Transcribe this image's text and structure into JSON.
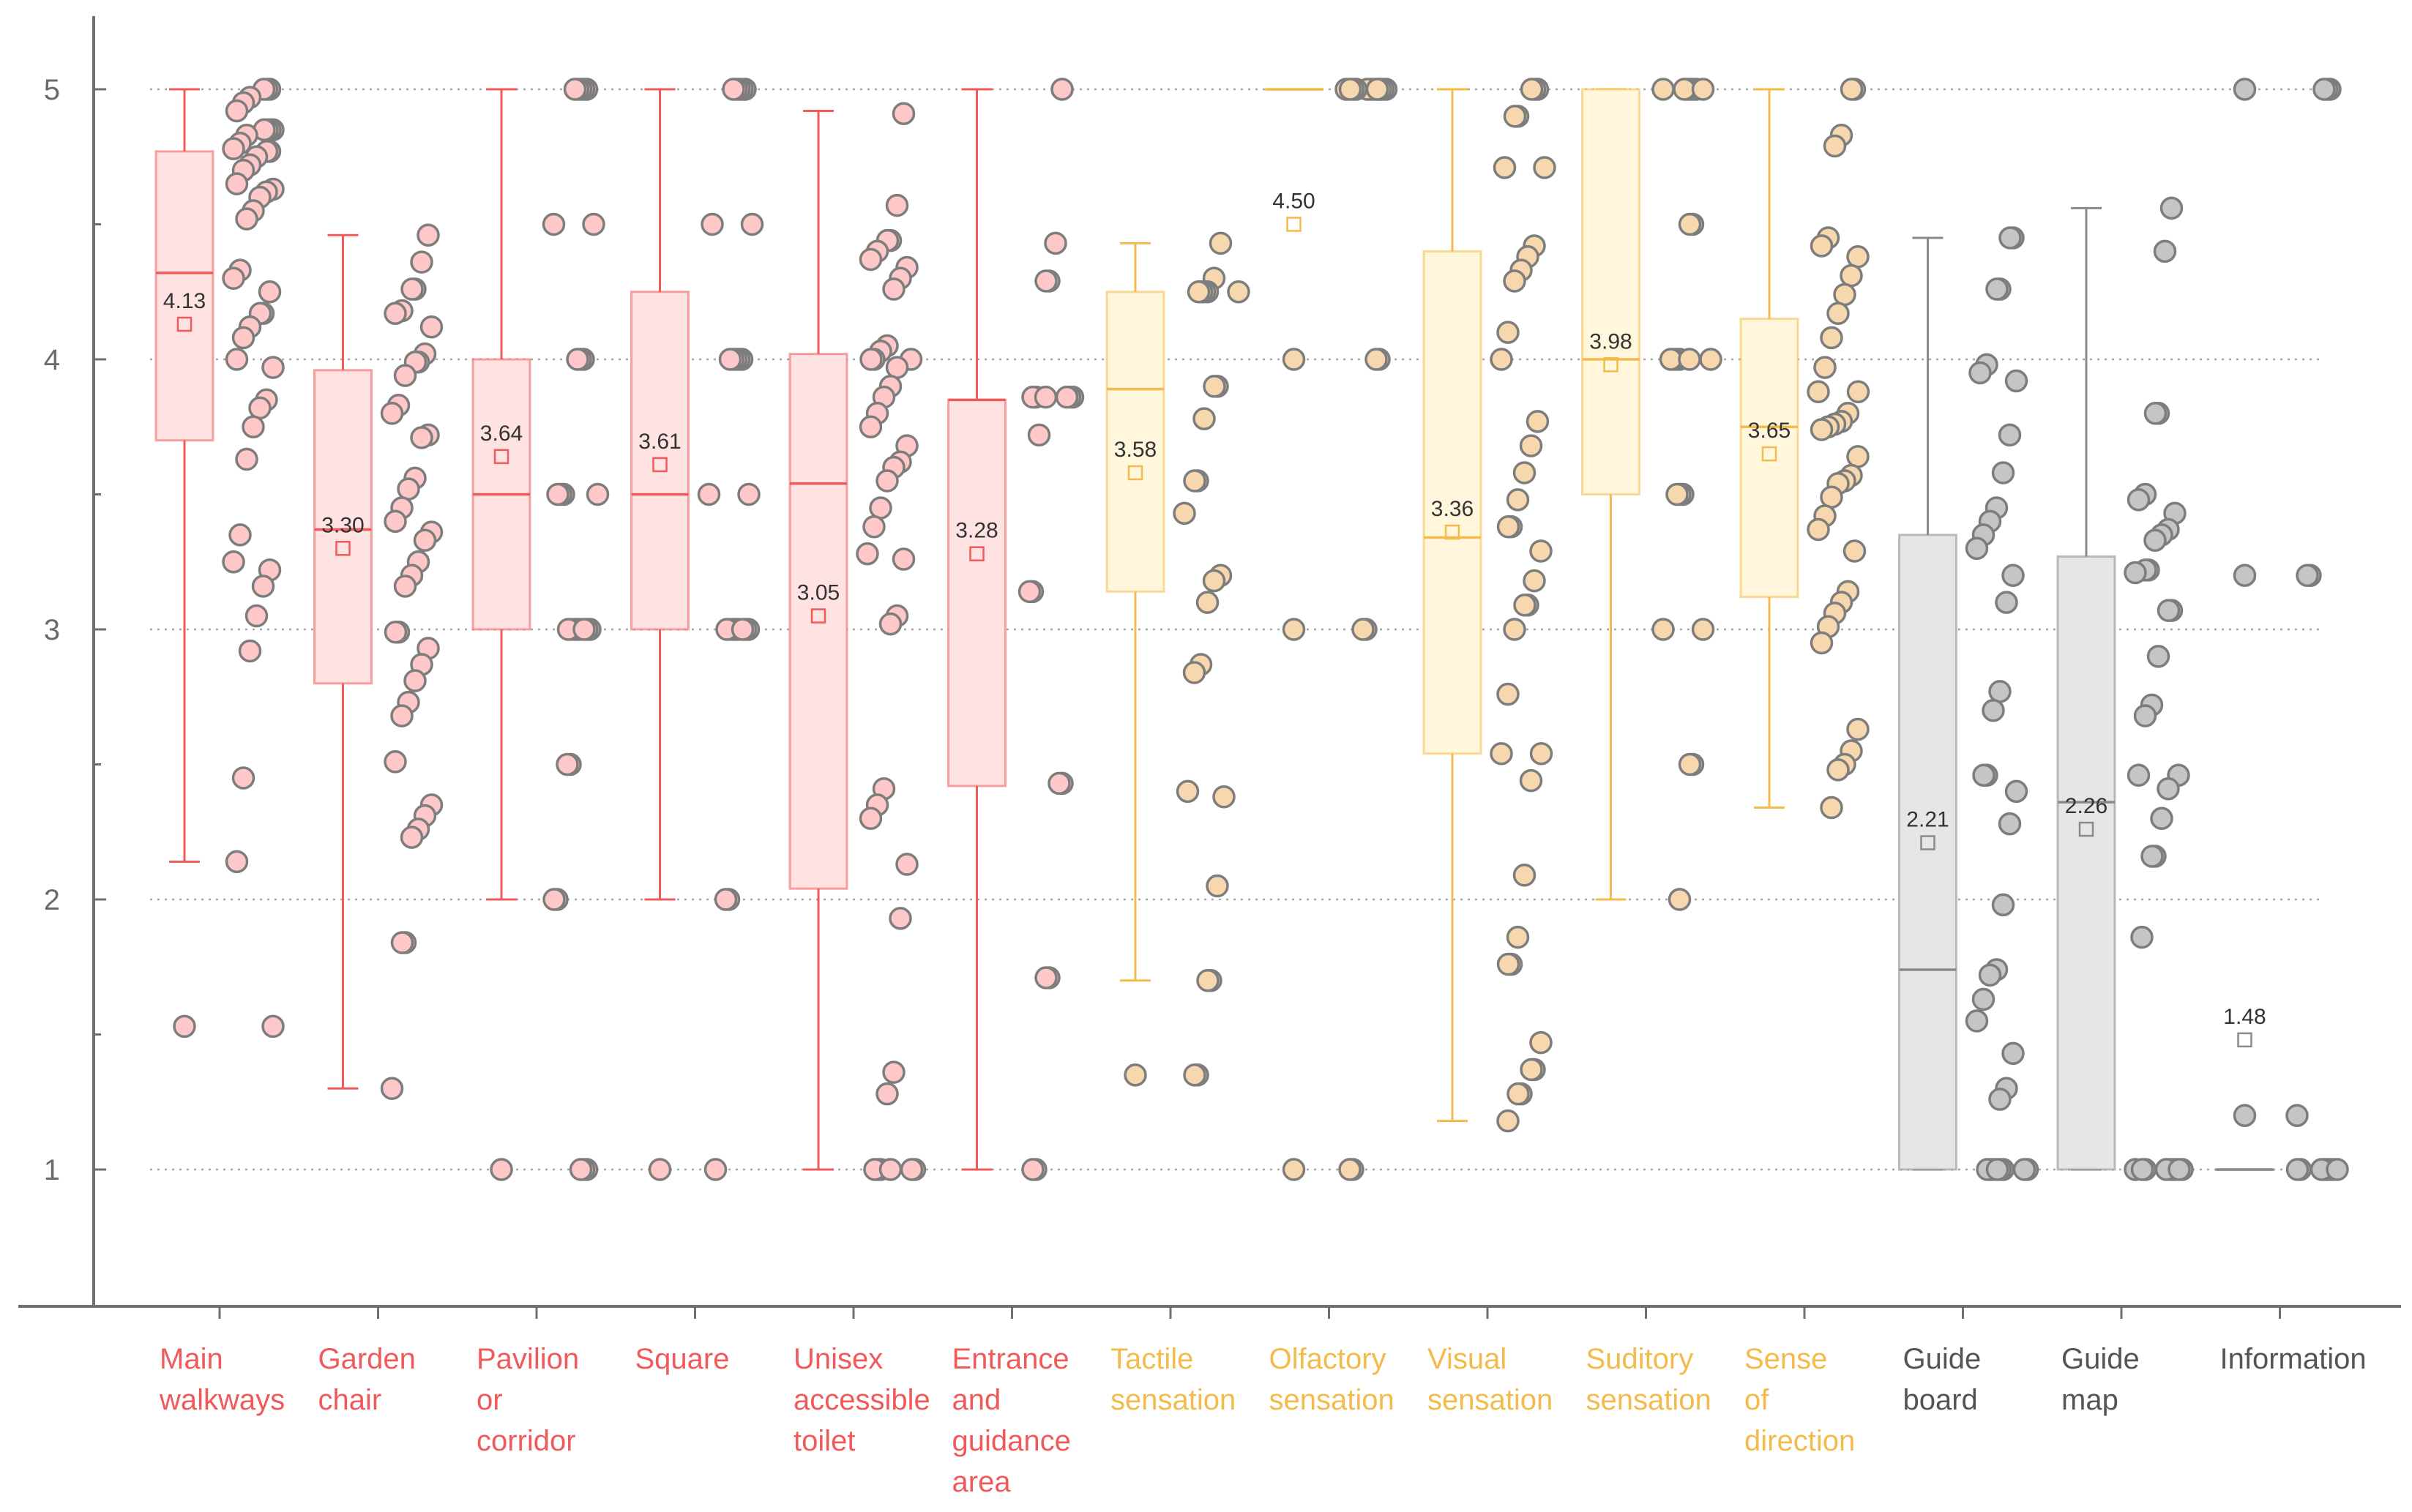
{
  "colors": {
    "red_line": "#f05a5a",
    "red_fill": "#ffe2e2",
    "red_dot": "#ffc8c8",
    "yellow_line": "#f2bb4b",
    "yellow_fill": "#fff6dc",
    "yellow_dot": "#f7d7ad",
    "gray_line": "#8a8a8a",
    "gray_fill": "#e6e6e6",
    "gray_dot": "#c5c5c5",
    "dot_stroke": "#7d7d7d",
    "axis": "#6f6f6f",
    "grid": "#a8a8a8"
  },
  "chart_data": {
    "type": "box",
    "title": "",
    "xlabel": "",
    "ylabel": "",
    "ylim": [
      0.5,
      5.3
    ],
    "yticks": [
      1,
      2,
      3,
      4,
      5
    ],
    "ytick_labels": [
      "1",
      "2",
      "3",
      "4",
      "5"
    ],
    "grid": "horizontal dotted at 1, 2, 3, 4, 5",
    "categories": [
      {
        "name": "Main walkways",
        "label_lines": [
          "Main",
          "walkways"
        ],
        "group": "red",
        "min": 2.14,
        "q1": 3.7,
        "median": 4.32,
        "q3": 4.77,
        "max": 5.0,
        "mean": 4.13,
        "mean_label": "4.13",
        "outliers": [
          1.53
        ],
        "points": [
          5,
          5,
          5,
          4.97,
          4.95,
          4.92,
          4.85,
          4.85,
          4.85,
          4.85,
          4.83,
          4.8,
          4.78,
          4.77,
          4.77,
          4.75,
          4.72,
          4.7,
          4.65,
          4.63,
          4.62,
          4.6,
          4.55,
          4.52,
          4.33,
          4.3,
          4.25,
          4.17,
          4.17,
          4.12,
          4.08,
          4,
          3.97,
          3.85,
          3.82,
          3.75,
          3.63,
          3.35,
          3.25,
          3.22,
          3.16,
          3.05,
          2.92,
          2.45,
          2.14,
          1.53
        ]
      },
      {
        "name": "Garden chair",
        "label_lines": [
          "Garden",
          "chair"
        ],
        "group": "red",
        "min": 1.3,
        "q1": 2.8,
        "median": 3.37,
        "q3": 3.96,
        "max": 4.46,
        "mean": 3.3,
        "mean_label": "3.30",
        "outliers": [],
        "points": [
          4.46,
          4.36,
          4.26,
          4.26,
          4.18,
          4.17,
          4.12,
          4.02,
          3.99,
          3.99,
          3.94,
          3.83,
          3.8,
          3.72,
          3.71,
          3.56,
          3.52,
          3.45,
          3.4,
          3.36,
          3.33,
          3.25,
          3.2,
          3.16,
          2.99,
          2.99,
          2.93,
          2.87,
          2.81,
          2.73,
          2.68,
          2.51,
          2.35,
          2.31,
          2.26,
          2.23,
          1.84,
          1.84,
          1.3
        ]
      },
      {
        "name": "Pavilion or corridor",
        "label_lines": [
          "Pavilion",
          "or",
          "corridor"
        ],
        "group": "red",
        "min": 2.0,
        "q1": 3.0,
        "median": 3.5,
        "q3": 4.0,
        "max": 5.0,
        "mean": 3.64,
        "mean_label": "3.64",
        "outliers": [
          1.0
        ],
        "points": [
          5,
          5,
          5,
          5,
          5,
          4.5,
          4.5,
          4,
          4,
          4,
          3.5,
          3.5,
          3.5,
          3.5,
          3,
          3,
          3,
          3,
          3,
          3,
          3,
          3,
          2.5,
          2.5,
          2,
          2,
          1,
          1,
          1
        ]
      },
      {
        "name": "Square",
        "label_lines": [
          "Square"
        ],
        "group": "red",
        "min": 2.0,
        "q1": 3.0,
        "median": 3.5,
        "q3": 4.25,
        "max": 5.0,
        "mean": 3.61,
        "mean_label": "3.61",
        "outliers": [
          1.0
        ],
        "points": [
          5,
          5,
          5,
          5,
          5,
          4.5,
          4.5,
          4,
          4,
          4,
          4,
          4,
          3.5,
          3.5,
          3,
          3,
          3,
          3,
          3,
          3,
          3,
          3,
          2,
          2,
          1
        ]
      },
      {
        "name": "Unisex accessible toilet",
        "label_lines": [
          "Unisex",
          "accessible",
          "toilet"
        ],
        "group": "red",
        "min": 1.0,
        "q1": 2.04,
        "median": 3.54,
        "q3": 4.02,
        "max": 4.92,
        "mean": 3.05,
        "mean_label": "3.05",
        "outliers": [],
        "points": [
          4.91,
          4.57,
          4.44,
          4.44,
          4.4,
          4.37,
          4.34,
          4.3,
          4.26,
          4.05,
          4.03,
          4.0,
          4.0,
          4.0,
          3.97,
          3.9,
          3.86,
          3.8,
          3.75,
          3.68,
          3.62,
          3.6,
          3.55,
          3.45,
          3.38,
          3.28,
          3.26,
          3.05,
          3.02,
          2.41,
          2.35,
          2.3,
          2.13,
          1.93,
          1.36,
          1.28,
          1,
          1,
          1,
          1,
          1,
          1
        ]
      },
      {
        "name": "Entrance and guidance area",
        "label_lines": [
          "Entrance",
          "and",
          "guidance",
          "area"
        ],
        "group": "red",
        "min": 1.0,
        "q1": 2.42,
        "median": 3.85,
        "q3": 3.85,
        "max": 5.0,
        "mean": 3.28,
        "mean_label": "3.28",
        "outliers": [],
        "points": [
          5,
          4.43,
          4.29,
          4.29,
          3.86,
          3.86,
          3.86,
          3.86,
          3.86,
          3.86,
          3.72,
          3.14,
          3.14,
          2.43,
          2.43,
          1.71,
          1.71,
          1,
          1
        ]
      },
      {
        "name": "Tactile sensation",
        "label_lines": [
          "Tactile",
          "sensation"
        ],
        "group": "yellow",
        "min": 1.7,
        "q1": 3.14,
        "median": 3.89,
        "q3": 4.25,
        "max": 4.43,
        "mean": 3.58,
        "mean_label": "3.58",
        "outliers": [
          1.35
        ],
        "points": [
          4.43,
          4.3,
          4.25,
          4.25,
          4.25,
          4.25,
          4.25,
          3.9,
          3.9,
          3.78,
          3.55,
          3.55,
          3.43,
          3.2,
          3.18,
          3.1,
          2.87,
          2.84,
          2.4,
          2.38,
          2.05,
          1.7,
          1.7,
          1.35,
          1.35
        ]
      },
      {
        "name": "Olfactory sensation",
        "label_lines": [
          "Olfactory",
          "sensation"
        ],
        "group": "yellow",
        "min": 5.0,
        "q1": 5.0,
        "median": 5.0,
        "q3": 5.0,
        "max": 5.0,
        "mean": 4.5,
        "mean_label": "4.50",
        "outliers": [
          4.0,
          3.0,
          1.0
        ],
        "points": [
          5,
          5,
          5,
          5,
          5,
          5,
          5,
          5,
          5,
          5,
          5,
          5,
          5,
          4,
          4,
          3,
          3,
          1,
          1
        ]
      },
      {
        "name": "Visual sensation",
        "label_lines": [
          "Visual",
          "sensation"
        ],
        "group": "yellow",
        "min": 1.18,
        "q1": 2.54,
        "median": 3.34,
        "q3": 4.4,
        "max": 5.0,
        "mean": 3.36,
        "mean_label": "3.36",
        "outliers": [],
        "points": [
          5,
          5,
          5,
          4.9,
          4.9,
          4.71,
          4.71,
          4.42,
          4.38,
          4.33,
          4.29,
          4.1,
          4.0,
          3.77,
          3.68,
          3.58,
          3.48,
          3.38,
          3.38,
          3.29,
          3.18,
          3.09,
          3.09,
          3.0,
          2.76,
          2.54,
          2.54,
          2.44,
          2.09,
          1.86,
          1.76,
          1.76,
          1.47,
          1.37,
          1.37,
          1.28,
          1.28,
          1.18
        ]
      },
      {
        "name": "Suditory sensation",
        "label_lines": [
          "Suditory",
          "sensation"
        ],
        "group": "yellow",
        "min": 2.0,
        "q1": 3.5,
        "median": 4.0,
        "q3": 5.0,
        "max": 5.0,
        "mean": 3.98,
        "mean_label": "3.98",
        "outliers": [],
        "points": [
          5,
          5,
          5,
          5,
          5,
          5,
          5,
          4.5,
          4.5,
          4,
          4,
          4,
          4,
          4,
          4,
          3.5,
          3.5,
          3.5,
          3,
          3,
          2.5,
          2.5,
          2
        ]
      },
      {
        "name": "Sense of direction",
        "label_lines": [
          "Sense",
          "of",
          "direction"
        ],
        "group": "yellow",
        "min": 2.34,
        "q1": 3.12,
        "median": 3.75,
        "q3": 4.15,
        "max": 5.0,
        "mean": 3.65,
        "mean_label": "3.65",
        "outliers": [],
        "points": [
          5,
          5,
          4.83,
          4.79,
          4.45,
          4.42,
          4.38,
          4.31,
          4.24,
          4.17,
          4.08,
          3.97,
          3.88,
          3.88,
          3.8,
          3.77,
          3.76,
          3.75,
          3.74,
          3.64,
          3.57,
          3.55,
          3.54,
          3.49,
          3.42,
          3.37,
          3.29,
          3.14,
          3.1,
          3.06,
          3.01,
          2.95,
          2.63,
          2.55,
          2.5,
          2.48,
          2.34
        ]
      },
      {
        "name": "Guide board",
        "label_lines": [
          "Guide",
          "board"
        ],
        "group": "gray",
        "min": 1.0,
        "q1": 1.0,
        "median": 1.74,
        "q3": 3.35,
        "max": 4.45,
        "mean": 2.21,
        "mean_label": "2.21",
        "outliers": [],
        "points": [
          4.45,
          4.45,
          4.26,
          4.26,
          3.98,
          3.95,
          3.92,
          3.72,
          3.58,
          3.45,
          3.4,
          3.35,
          3.3,
          3.2,
          3.1,
          2.77,
          2.7,
          2.46,
          2.46,
          2.4,
          2.28,
          1.98,
          1.74,
          1.72,
          1.63,
          1.55,
          1.43,
          1.3,
          1.26,
          1,
          1,
          1,
          1,
          1,
          1,
          1,
          1
        ]
      },
      {
        "name": "Guide map",
        "label_lines": [
          "Guide",
          "map"
        ],
        "group": "gray",
        "min": 1.0,
        "q1": 1.0,
        "median": 2.36,
        "q3": 3.27,
        "max": 4.56,
        "mean": 2.26,
        "mean_label": "2.26",
        "outliers": [],
        "points": [
          4.56,
          4.4,
          3.8,
          3.8,
          3.5,
          3.48,
          3.43,
          3.37,
          3.35,
          3.33,
          3.22,
          3.22,
          3.21,
          3.07,
          3.07,
          2.9,
          2.72,
          2.68,
          2.46,
          2.46,
          2.41,
          2.3,
          2.16,
          2.16,
          1.86,
          1,
          1,
          1,
          1,
          1,
          1,
          1,
          1,
          1
        ]
      },
      {
        "name": "Information",
        "label_lines": [
          "Information"
        ],
        "group": "gray",
        "min": 1.0,
        "q1": 1.0,
        "median": 1.0,
        "q3": 1.0,
        "max": 1.0,
        "mean": 1.48,
        "mean_label": "1.48",
        "outliers": [
          5.0,
          3.2,
          1.2
        ],
        "points": [
          5,
          5,
          5,
          3.2,
          3.2,
          1.2,
          1,
          1,
          1,
          1,
          1,
          1,
          1,
          1
        ]
      }
    ]
  }
}
